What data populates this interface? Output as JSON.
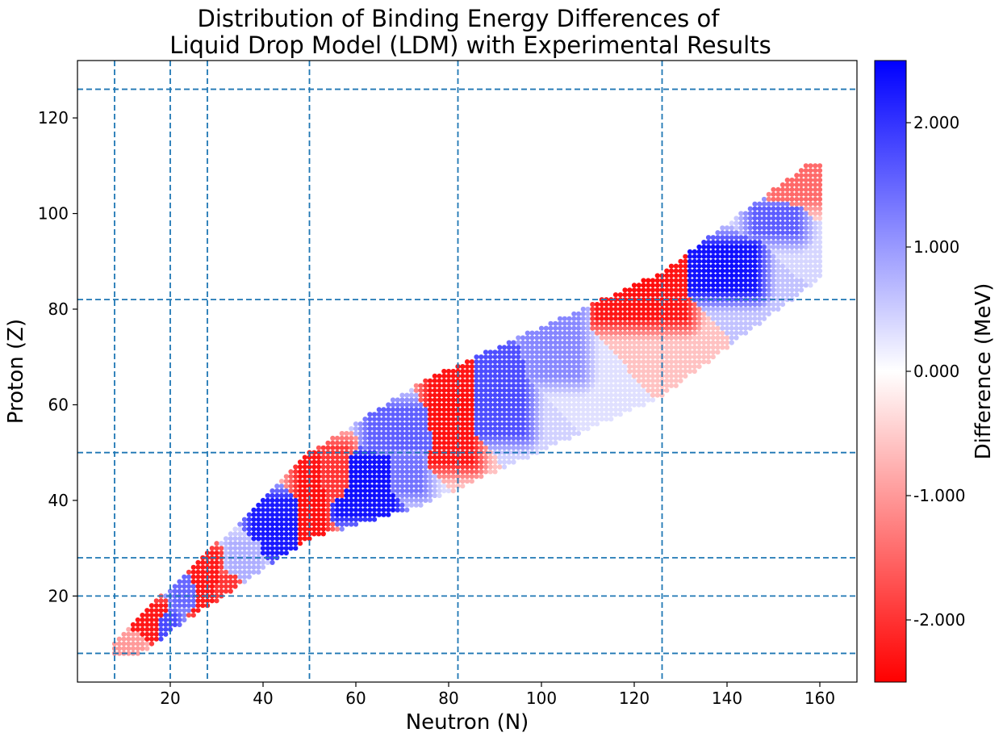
{
  "chart_data": {
    "type": "scatter",
    "title_line1": "Distribution of Binding Energy Differences of",
    "title_line2": "Liquid Drop Model (LDM) with Experimental Results",
    "xlabel": "Neutron (N)",
    "ylabel": "Proton (Z)",
    "colorbar_label": "Difference (MeV)",
    "xlim": [
      0,
      168
    ],
    "ylim": [
      2,
      132
    ],
    "x_ticks": [
      20,
      40,
      60,
      80,
      100,
      120,
      140,
      160
    ],
    "y_ticks": [
      20,
      40,
      60,
      80,
      100,
      120
    ],
    "colorbar_range": [
      -2.5,
      2.5
    ],
    "colorbar_ticks": [
      {
        "value": 2,
        "label": "2.000"
      },
      {
        "value": 1,
        "label": "1.000"
      },
      {
        "value": 0,
        "label": "0.000"
      },
      {
        "value": -1,
        "label": "-1.000"
      },
      {
        "value": -2,
        "label": "-2.000"
      }
    ],
    "magic_numbers": [
      8,
      20,
      28,
      50,
      82,
      126
    ],
    "colormap": {
      "low": "#ff0000",
      "mid": "#ffffff",
      "high": "#0000ff"
    },
    "magic_line_color": "#1f77b4",
    "grid": false,
    "regions": [
      {
        "n": [
          7,
          14
        ],
        "z": [
          8,
          12
        ],
        "value": -1.0
      },
      {
        "n": [
          12,
          19
        ],
        "z": [
          11,
          18
        ],
        "value": -2.3
      },
      {
        "n": [
          18,
          21
        ],
        "z": [
          10,
          16
        ],
        "value": 1.8
      },
      {
        "n": [
          21,
          25
        ],
        "z": [
          18,
          24
        ],
        "value": 1.5
      },
      {
        "n": [
          25,
          30
        ],
        "z": [
          17,
          29
        ],
        "value": -2.3
      },
      {
        "n": [
          30,
          34
        ],
        "z": [
          19,
          24
        ],
        "value": -2.0
      },
      {
        "n": [
          33,
          39
        ],
        "z": [
          24,
          31
        ],
        "value": 0.8
      },
      {
        "n": [
          38,
          47
        ],
        "z": [
          29,
          40
        ],
        "value": 2.3
      },
      {
        "n": [
          48,
          53
        ],
        "z": [
          29,
          50
        ],
        "value": -2.4
      },
      {
        "n": [
          53,
          58
        ],
        "z": [
          41,
          51
        ],
        "value": -2.0
      },
      {
        "n": [
          56,
          68
        ],
        "z": [
          37,
          49
        ],
        "value": 2.4
      },
      {
        "n": [
          68,
          74
        ],
        "z": [
          42,
          49
        ],
        "value": 1.4
      },
      {
        "n": [
          63,
          76
        ],
        "z": [
          51,
          59
        ],
        "value": 1.6
      },
      {
        "n": [
          76,
          85
        ],
        "z": [
          48,
          70
        ],
        "value": -2.4
      },
      {
        "n": [
          86,
          96
        ],
        "z": [
          54,
          72
        ],
        "value": 1.8
      },
      {
        "n": [
          96,
          108
        ],
        "z": [
          66,
          82
        ],
        "value": 1.2
      },
      {
        "n": [
          112,
          131
        ],
        "z": [
          78,
          92
        ],
        "value": -2.4
      },
      {
        "n": [
          132,
          146
        ],
        "z": [
          84,
          93
        ],
        "value": 2.4
      },
      {
        "n": [
          146,
          155
        ],
        "z": [
          96,
          101
        ],
        "value": 1.6
      },
      {
        "n": [
          150,
          160
        ],
        "z": [
          103,
          110
        ],
        "value": -1.5
      }
    ]
  }
}
